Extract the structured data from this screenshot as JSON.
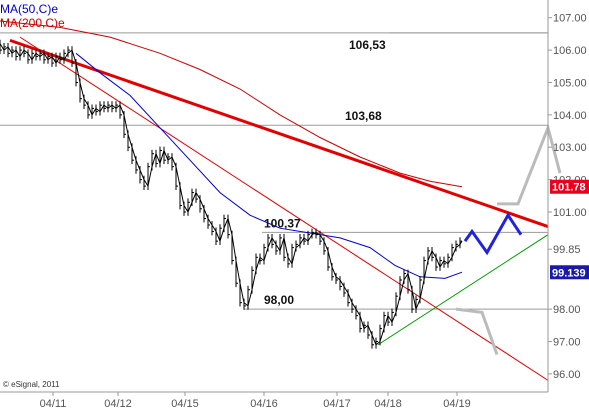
{
  "chart_data": {
    "type": "line",
    "title": "",
    "legend": [
      {
        "name": "MA(50,C)e",
        "color": "#0000cc"
      },
      {
        "name": "MA(200,C)e",
        "color": "#cc0000"
      }
    ],
    "legend_placement": "top-left",
    "copyright": "© eSignal, 2011",
    "x_labels": [
      "04/11",
      "04/12",
      "04/15",
      "04/16",
      "04/17",
      "04/18",
      "04/19"
    ],
    "y_ticks": [
      "107.00",
      "106.00",
      "105.00",
      "104.00",
      "103.00",
      "102.00",
      "101.00",
      "99.85",
      "98.00",
      "97.00",
      "96.00"
    ],
    "y_tick_values": [
      107.0,
      106.0,
      105.0,
      104.0,
      103.0,
      102.0,
      101.0,
      99.85,
      98.0,
      97.0,
      96.0
    ],
    "ylim": [
      95.75,
      107.3
    ],
    "grid": false,
    "price_tags": [
      {
        "label": "101.78",
        "value": 101.78,
        "bg": "#e8001c",
        "fg": "#ffffff"
      },
      {
        "label": "99.139",
        "value": 99.139,
        "bg": "#1a1aa8",
        "fg": "#ffffff"
      }
    ],
    "levels": [
      {
        "label": "106,53",
        "value": 106.53
      },
      {
        "label": "103,68",
        "value": 103.68
      },
      {
        "label": "100,37",
        "value": 100.37
      },
      {
        "label": "98,00",
        "value": 98.0
      }
    ],
    "price_series": {
      "name": "Price",
      "color": "#000000",
      "points": [
        [
          0,
          106.2
        ],
        [
          4,
          106.0
        ],
        [
          8,
          106.1
        ],
        [
          12,
          105.9
        ],
        [
          16,
          106.0
        ],
        [
          20,
          105.8
        ],
        [
          24,
          106.0
        ],
        [
          28,
          105.9
        ],
        [
          32,
          105.7
        ],
        [
          36,
          105.9
        ],
        [
          40,
          105.8
        ],
        [
          44,
          105.9
        ],
        [
          48,
          105.7
        ],
        [
          52,
          105.8
        ],
        [
          56,
          105.6
        ],
        [
          60,
          105.8
        ],
        [
          64,
          105.7
        ],
        [
          68,
          105.9
        ],
        [
          72,
          106.0
        ],
        [
          76,
          105.6
        ],
        [
          80,
          105.0
        ],
        [
          84,
          104.5
        ],
        [
          88,
          104.3
        ],
        [
          92,
          104.0
        ],
        [
          96,
          104.2
        ],
        [
          100,
          104.1
        ],
        [
          104,
          104.3
        ],
        [
          108,
          104.2
        ],
        [
          112,
          104.3
        ],
        [
          116,
          104.2
        ],
        [
          120,
          104.3
        ],
        [
          124,
          104.0
        ],
        [
          128,
          103.4
        ],
        [
          132,
          103.0
        ],
        [
          136,
          102.6
        ],
        [
          140,
          102.3
        ],
        [
          144,
          102.0
        ],
        [
          148,
          101.8
        ],
        [
          152,
          102.4
        ],
        [
          156,
          102.8
        ],
        [
          160,
          102.5
        ],
        [
          164,
          102.9
        ],
        [
          168,
          102.6
        ],
        [
          172,
          102.7
        ],
        [
          176,
          102.4
        ],
        [
          180,
          101.8
        ],
        [
          184,
          101.2
        ],
        [
          188,
          101.0
        ],
        [
          192,
          101.3
        ],
        [
          196,
          101.6
        ],
        [
          200,
          101.4
        ],
        [
          204,
          101.1
        ],
        [
          208,
          100.8
        ],
        [
          212,
          100.6
        ],
        [
          216,
          100.4
        ],
        [
          220,
          100.1
        ],
        [
          224,
          100.5
        ],
        [
          228,
          100.8
        ],
        [
          232,
          100.3
        ],
        [
          236,
          99.5
        ],
        [
          240,
          98.8
        ],
        [
          244,
          98.2
        ],
        [
          248,
          98.1
        ],
        [
          252,
          98.6
        ],
        [
          256,
          99.2
        ],
        [
          260,
          99.6
        ],
        [
          264,
          99.5
        ],
        [
          268,
          99.9
        ],
        [
          272,
          100.2
        ],
        [
          276,
          100.0
        ],
        [
          280,
          99.8
        ],
        [
          284,
          100.2
        ],
        [
          288,
          99.6
        ],
        [
          292,
          99.4
        ],
        [
          296,
          99.9
        ],
        [
          300,
          100.0
        ],
        [
          304,
          100.2
        ],
        [
          308,
          100.1
        ],
        [
          312,
          100.3
        ],
        [
          316,
          100.37
        ],
        [
          320,
          100.3
        ],
        [
          324,
          100.1
        ],
        [
          328,
          99.8
        ],
        [
          332,
          99.3
        ],
        [
          336,
          99.0
        ],
        [
          340,
          98.9
        ],
        [
          344,
          98.7
        ],
        [
          348,
          98.5
        ],
        [
          352,
          98.2
        ],
        [
          356,
          98.0
        ],
        [
          360,
          97.8
        ],
        [
          364,
          97.4
        ],
        [
          368,
          97.5
        ],
        [
          372,
          97.2
        ],
        [
          376,
          96.9
        ],
        [
          380,
          97.0
        ],
        [
          384,
          97.4
        ],
        [
          388,
          97.8
        ],
        [
          392,
          97.6
        ],
        [
          396,
          97.9
        ],
        [
          400,
          98.4
        ],
        [
          404,
          98.9
        ],
        [
          408,
          99.1
        ],
        [
          412,
          98.6
        ],
        [
          416,
          98.0
        ],
        [
          420,
          98.3
        ],
        [
          424,
          98.9
        ],
        [
          428,
          99.5
        ],
        [
          432,
          99.8
        ],
        [
          436,
          99.6
        ],
        [
          440,
          99.3
        ],
        [
          444,
          99.5
        ],
        [
          448,
          99.4
        ],
        [
          452,
          99.6
        ],
        [
          456,
          99.9
        ],
        [
          460,
          100.0
        ],
        [
          462,
          100.1
        ]
      ]
    },
    "ma50_series": {
      "name": "MA(50,C)e",
      "color": "#0000cc",
      "points": [
        [
          76,
          105.9
        ],
        [
          100,
          105.3
        ],
        [
          130,
          104.6
        ],
        [
          160,
          103.6
        ],
        [
          190,
          102.6
        ],
        [
          220,
          101.6
        ],
        [
          250,
          100.9
        ],
        [
          280,
          100.5
        ],
        [
          310,
          100.35
        ],
        [
          340,
          100.2
        ],
        [
          370,
          99.9
        ],
        [
          395,
          99.35
        ],
        [
          420,
          99.0
        ],
        [
          445,
          98.95
        ],
        [
          462,
          99.14
        ]
      ]
    },
    "ma200_series": {
      "name": "MA(200,C)e",
      "color": "#cc0000",
      "points": [
        [
          0,
          106.9
        ],
        [
          60,
          106.7
        ],
        [
          110,
          106.4
        ],
        [
          160,
          105.9
        ],
        [
          200,
          105.4
        ],
        [
          240,
          104.8
        ],
        [
          280,
          104.0
        ],
        [
          320,
          103.3
        ],
        [
          360,
          102.7
        ],
        [
          400,
          102.2
        ],
        [
          430,
          101.95
        ],
        [
          462,
          101.78
        ]
      ]
    },
    "trendlines": [
      {
        "name": "thick-resistance",
        "color": "#e00000",
        "width": 3,
        "from": [
          10,
          106.3
        ],
        "to": [
          548,
          100.55
        ]
      },
      {
        "name": "thin-resistance",
        "color": "#e00000",
        "width": 1,
        "from": [
          20,
          106.4
        ],
        "to": [
          548,
          95.8
        ]
      },
      {
        "name": "support",
        "color": "#009900",
        "width": 1,
        "from": [
          378,
          96.9
        ],
        "to": [
          548,
          100.3
        ]
      }
    ],
    "projection_blue": {
      "color": "#2222dd",
      "width": 3,
      "points": [
        [
          465,
          100.1
        ],
        [
          472,
          100.4
        ],
        [
          487,
          99.75
        ],
        [
          508,
          100.9
        ],
        [
          521,
          100.3
        ]
      ]
    },
    "projection_gray_up": {
      "color": "#bbbbbb",
      "width": 3,
      "points": [
        [
          497,
          101.25
        ],
        [
          518,
          101.25
        ],
        [
          548,
          103.6
        ],
        [
          560,
          102.2
        ]
      ]
    },
    "projection_gray_down": {
      "color": "#bbbbbb",
      "width": 3,
      "points": [
        [
          456,
          98.0
        ],
        [
          482,
          97.9
        ],
        [
          497,
          96.6
        ]
      ]
    }
  }
}
